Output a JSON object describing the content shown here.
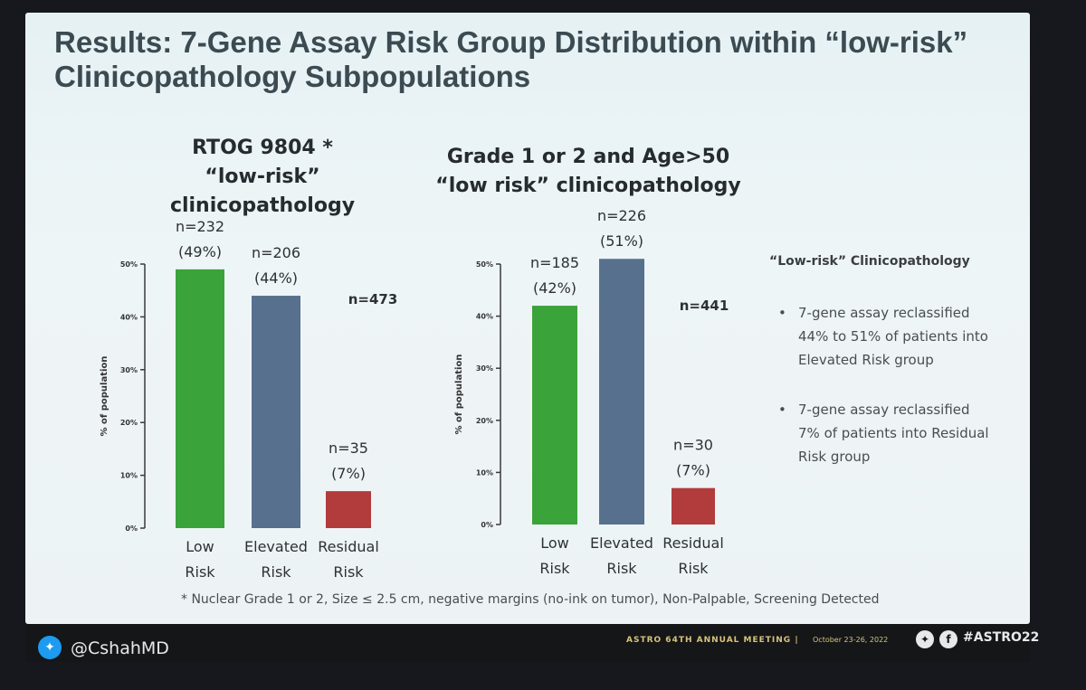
{
  "slide": {
    "title": "Results: 7-Gene Assay Risk Group Distribution within “low-risk” Clinicopathology Subpopulations",
    "subtitle_left_line1": "RTOG 9804 *",
    "subtitle_left_line2": "“low-risk” clinicopathology",
    "subtitle_right_line1": "Grade 1 or 2 and Age>50",
    "subtitle_right_line2": "“low risk” clinicopathology",
    "side_heading": "“Low-risk” Clinicopathology",
    "bullets": [
      "7-gene assay reclassified 44% to 51% of patients into Elevated Risk group",
      "7-gene assay reclassified 7% of patients into Residual Risk group"
    ],
    "bullet_marker": "•",
    "footnote": "* Nuclear Grade 1 or 2, Size ≤ 2.5 cm, negative margins (no-ink on tumor), Non-Palpable, Screening Detected"
  },
  "footer": {
    "handle": "@CshahMD",
    "meeting": "ASTRO 64TH ANNUAL MEETING  |",
    "date": "October 23-26, 2022",
    "hashtag": "#ASTRO22",
    "twitter_icon": "twitter-bird-icon",
    "facebook_icon": "facebook-icon"
  },
  "colors": {
    "low": "#3aa33a",
    "elevated": "#56708e",
    "residual": "#b23b3b",
    "axis": "#3a3a3a"
  },
  "chart_data": [
    {
      "type": "bar",
      "categories": [
        "Low Risk",
        "Elevated Risk",
        "Residual Risk"
      ],
      "values": [
        49,
        44,
        7
      ],
      "bar_labels_n": [
        "n=232",
        "n=206",
        "n=35"
      ],
      "bar_labels_pct": [
        "(49%)",
        "(44%)",
        "(7%)"
      ],
      "total_label": "n=473",
      "ylabel": "% of population",
      "yticks": [
        "0%",
        "10%",
        "20%",
        "30%",
        "40%",
        "50%"
      ],
      "ylim": [
        0,
        50
      ],
      "grid": false
    },
    {
      "type": "bar",
      "categories": [
        "Low Risk",
        "Elevated Risk",
        "Residual Risk"
      ],
      "values": [
        42,
        51,
        7
      ],
      "bar_labels_n": [
        "n=185",
        "n=226",
        "n=30"
      ],
      "bar_labels_pct": [
        "(42%)",
        "(51%)",
        "(7%)"
      ],
      "total_label": "n=441",
      "ylabel": "% of population",
      "yticks": [
        "0%",
        "10%",
        "20%",
        "30%",
        "40%",
        "50%"
      ],
      "ylim": [
        0,
        50
      ],
      "grid": false
    }
  ]
}
